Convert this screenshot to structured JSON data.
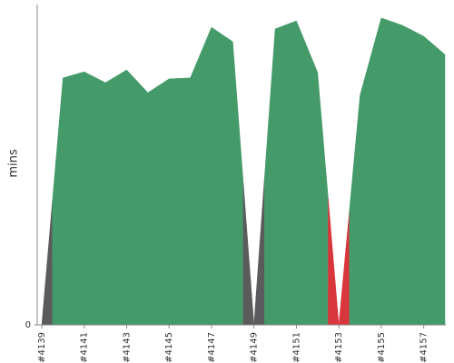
{
  "chart_data": {
    "type": "area",
    "y_label": "mins",
    "categories": [
      "#4139",
      null,
      "#4141",
      null,
      "#4143",
      null,
      "#4145",
      null,
      "#4147",
      null,
      "#4149",
      null,
      "#4151",
      null,
      "#4153",
      null,
      "#4155",
      null,
      "#4157",
      null
    ],
    "values": [
      0,
      77.1,
      79.0,
      75.6,
      79.6,
      72.5,
      76.8,
      77.1,
      92.9,
      88.4,
      0,
      92.4,
      94.9,
      78.8,
      0,
      71.7,
      95.8,
      93.5,
      90.1,
      84.4
    ],
    "colors": [
      "#5b5a5c",
      "#459a6a",
      "#459a6a",
      "#459a6a",
      "#459a6a",
      "#459a6a",
      "#459a6a",
      "#459a6a",
      "#459a6a",
      "#459a6a",
      "#5b5a5c",
      "#459a6a",
      "#459a6a",
      "#459a6a",
      "#d9363c",
      "#459a6a",
      "#459a6a",
      "#459a6a",
      "#459a6a",
      "#459a6a"
    ],
    "ylim": [
      0,
      100
    ],
    "yticks": [
      0
    ]
  }
}
